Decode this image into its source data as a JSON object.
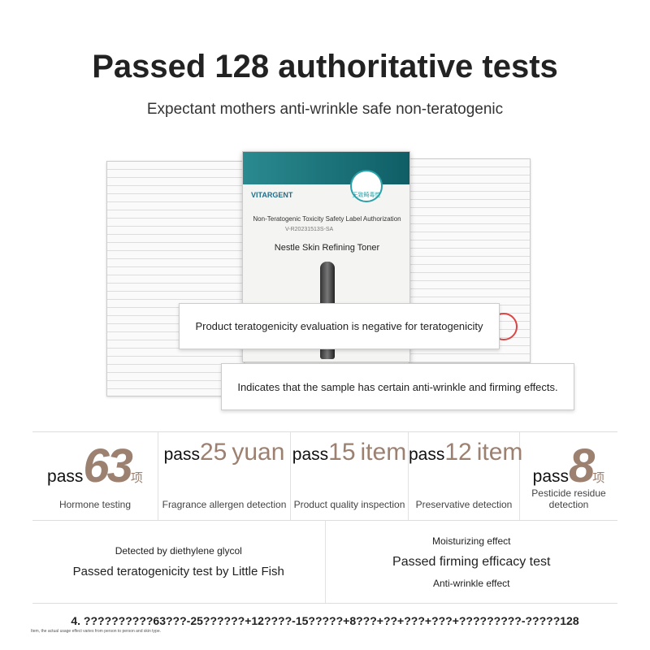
{
  "header": {
    "title": "Passed 128 authoritative tests",
    "subtitle": "Expectant mothers anti-wrinkle safe non-teratogenic"
  },
  "certificate": {
    "brand": "VITARGENT",
    "badge": "无致畸毒性",
    "heading": "Non-Teratogenic Toxicity Safety Label Authorization",
    "code": "V-R20231513S-SA",
    "product": "Nestle Skin Refining Toner"
  },
  "callouts": [
    "Product teratogenicity evaluation is negative for teratogenicity",
    "Indicates that the sample has certain anti-wrinkle and firming effects."
  ],
  "stats": [
    {
      "prefix": "pass",
      "number": 63,
      "unit": "项",
      "label": "Hormone testing"
    },
    {
      "prefix": "pass",
      "number": 25,
      "unit": "yuan",
      "label": "Fragrance allergen detection"
    },
    {
      "prefix": "pass",
      "number": 15,
      "unit": "item",
      "label": "Product quality inspection"
    },
    {
      "prefix": "pass",
      "number": 12,
      "unit": "item",
      "label": "Preservative detection"
    },
    {
      "prefix": "pass",
      "number": 8,
      "unit": "项",
      "label": "Pesticide residue detection"
    }
  ],
  "tests": {
    "left": [
      "Detected by diethylene glycol",
      "Passed teratogenicity test by Little Fish"
    ],
    "right": [
      "Moisturizing effect",
      "Passed firming efficacy test",
      "Anti-wrinkle effect"
    ]
  },
  "footer": {
    "line": "4. ??????????63???-25??????+12????-15?????+8???+??+???+???+?????????-?????128",
    "note": "Item, the actual usage effect varies from person to person and skin type."
  }
}
